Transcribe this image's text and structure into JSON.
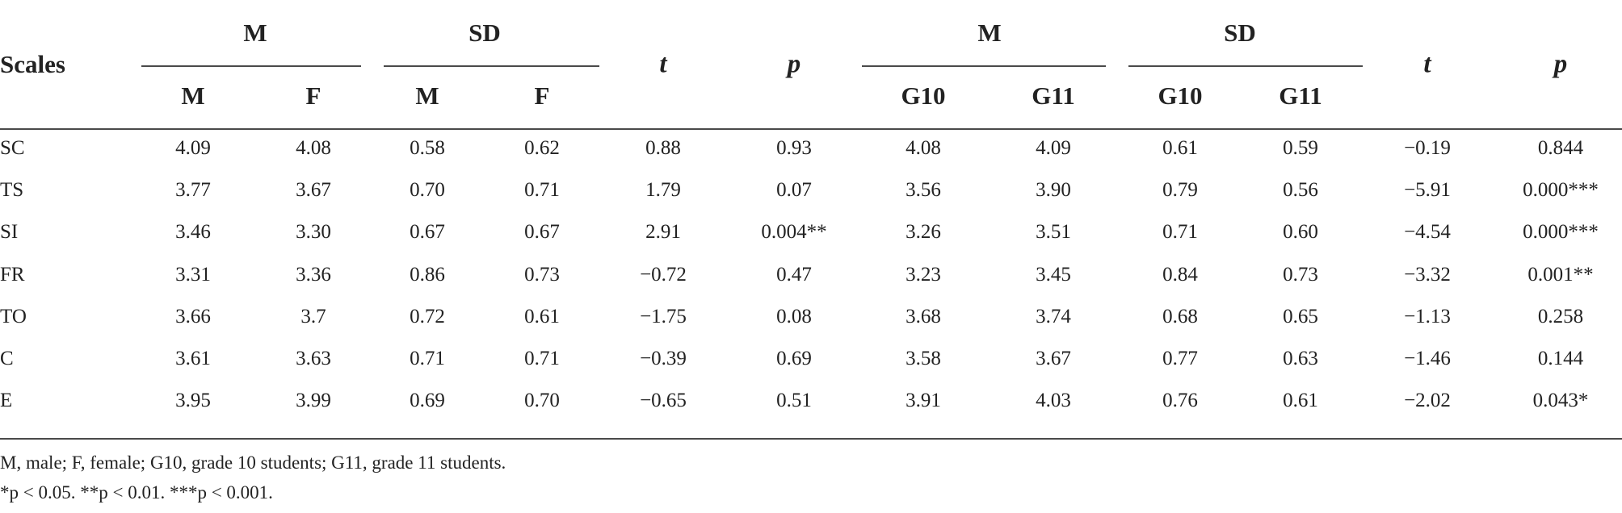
{
  "table": {
    "row_header": "Scales",
    "group_headers": [
      "M",
      "SD",
      "t",
      "p",
      "M",
      "SD",
      "t",
      "p"
    ],
    "sub_headers": [
      "M",
      "F",
      "M",
      "F",
      "G10",
      "G11",
      "G10",
      "G11"
    ],
    "rows": [
      {
        "scale": "SC",
        "values": [
          "4.09",
          "4.08",
          "0.58",
          "0.62",
          "0.88",
          "0.93",
          "4.08",
          "4.09",
          "0.61",
          "0.59",
          "−0.19",
          "0.844"
        ]
      },
      {
        "scale": "TS",
        "values": [
          "3.77",
          "3.67",
          "0.70",
          "0.71",
          "1.79",
          "0.07",
          "3.56",
          "3.90",
          "0.79",
          "0.56",
          "−5.91",
          "0.000***"
        ]
      },
      {
        "scale": "SI",
        "values": [
          "3.46",
          "3.30",
          "0.67",
          "0.67",
          "2.91",
          "0.004**",
          "3.26",
          "3.51",
          "0.71",
          "0.60",
          "−4.54",
          "0.000***"
        ]
      },
      {
        "scale": "FR",
        "values": [
          "3.31",
          "3.36",
          "0.86",
          "0.73",
          "−0.72",
          "0.47",
          "3.23",
          "3.45",
          "0.84",
          "0.73",
          "−3.32",
          "0.001**"
        ]
      },
      {
        "scale": "TO",
        "values": [
          "3.66",
          "3.7",
          "0.72",
          "0.61",
          "−1.75",
          "0.08",
          "3.68",
          "3.74",
          "0.68",
          "0.65",
          "−1.13",
          "0.258"
        ]
      },
      {
        "scale": "C",
        "values": [
          "3.61",
          "3.63",
          "0.71",
          "0.71",
          "−0.39",
          "0.69",
          "3.58",
          "3.67",
          "0.77",
          "0.63",
          "−1.46",
          "0.144"
        ]
      },
      {
        "scale": "E",
        "values": [
          "3.95",
          "3.99",
          "0.69",
          "0.70",
          "−0.65",
          "0.51",
          "3.91",
          "4.03",
          "0.76",
          "0.61",
          "−2.02",
          "0.043*"
        ]
      }
    ]
  },
  "footnotes": {
    "abbreviations": "M, male; F, female; G10, grade 10 students; G11, grade 11 students.",
    "significance": "*p < 0.05. **p < 0.01. ***p < 0.001."
  }
}
